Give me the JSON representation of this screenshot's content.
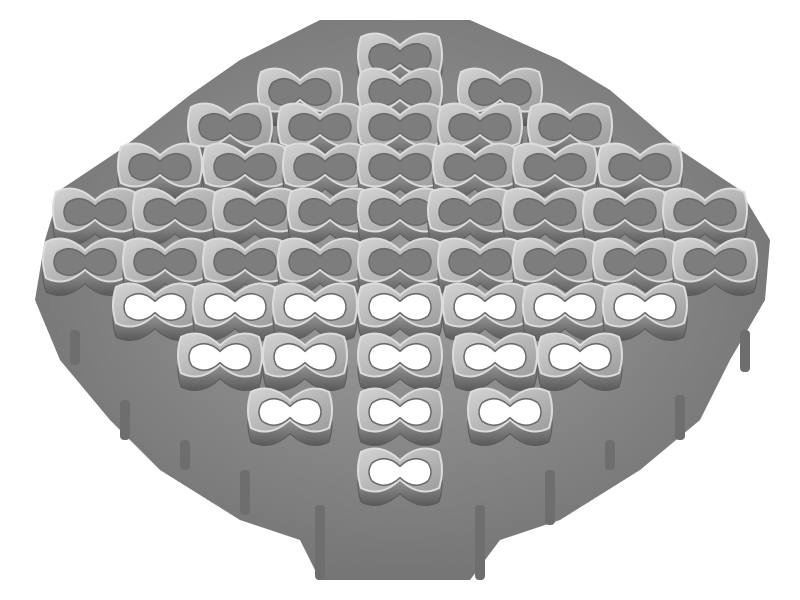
{
  "image": {
    "subject": "auxetic-lattice-microstructure",
    "background_color": "#ffffff",
    "material_light": "#b4b4b4",
    "material_mid": "#8a8a8a",
    "material_dark": "#4e4e4e",
    "rim_highlight": "#dcdcdc",
    "hole_color": "#ffffff"
  }
}
